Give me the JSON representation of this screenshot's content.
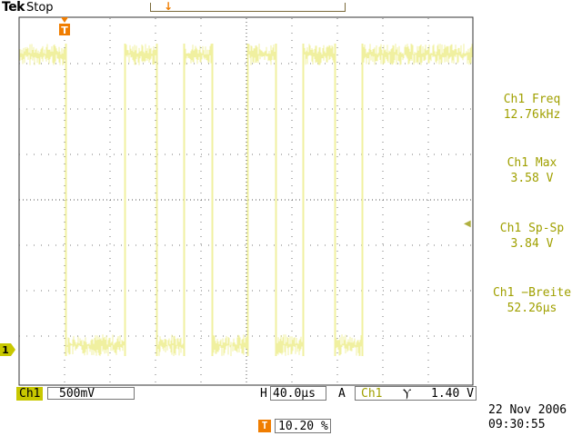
{
  "header": {
    "brand": "Tek",
    "run_state": "Stop"
  },
  "readouts": [
    {
      "label": "Ch1 Freq",
      "value": "12.76kHz"
    },
    {
      "label": "Ch1 Max",
      "value": "3.58 V"
    },
    {
      "label": "Ch1 Sp-Sp",
      "value": "3.84 V"
    },
    {
      "label": "Ch1 −Breite",
      "value": "52.26µs"
    }
  ],
  "channel_marker": "1",
  "trigger_marker": "T",
  "status_bar": {
    "channel": "Ch1",
    "volts_per_div": "500mV",
    "horizontal_label": "H",
    "time_per_div": "40.0µs",
    "acq_label": "A",
    "trigger_source": "Ch1",
    "trigger_slope": "Ⲩ",
    "trigger_level": "1.40 V"
  },
  "trigger_position": {
    "icon": "T",
    "percent": "10.20 %"
  },
  "datetime": {
    "date": "22 Nov 2006",
    "time": "09:30:55"
  },
  "colors": {
    "trace": "#f0f0a0",
    "grid": "#555555",
    "readout_text": "#a0a000",
    "trigger_orange": "#f07d00",
    "channel_yellow": "#c8c800"
  },
  "icons": {
    "trigger_marker": "trigger-marker-icon",
    "channel_marker": "channel-1-ground-marker-icon",
    "reference_arrow": "left-arrow-icon",
    "trigger_slope": "falling-edge-icon"
  }
}
